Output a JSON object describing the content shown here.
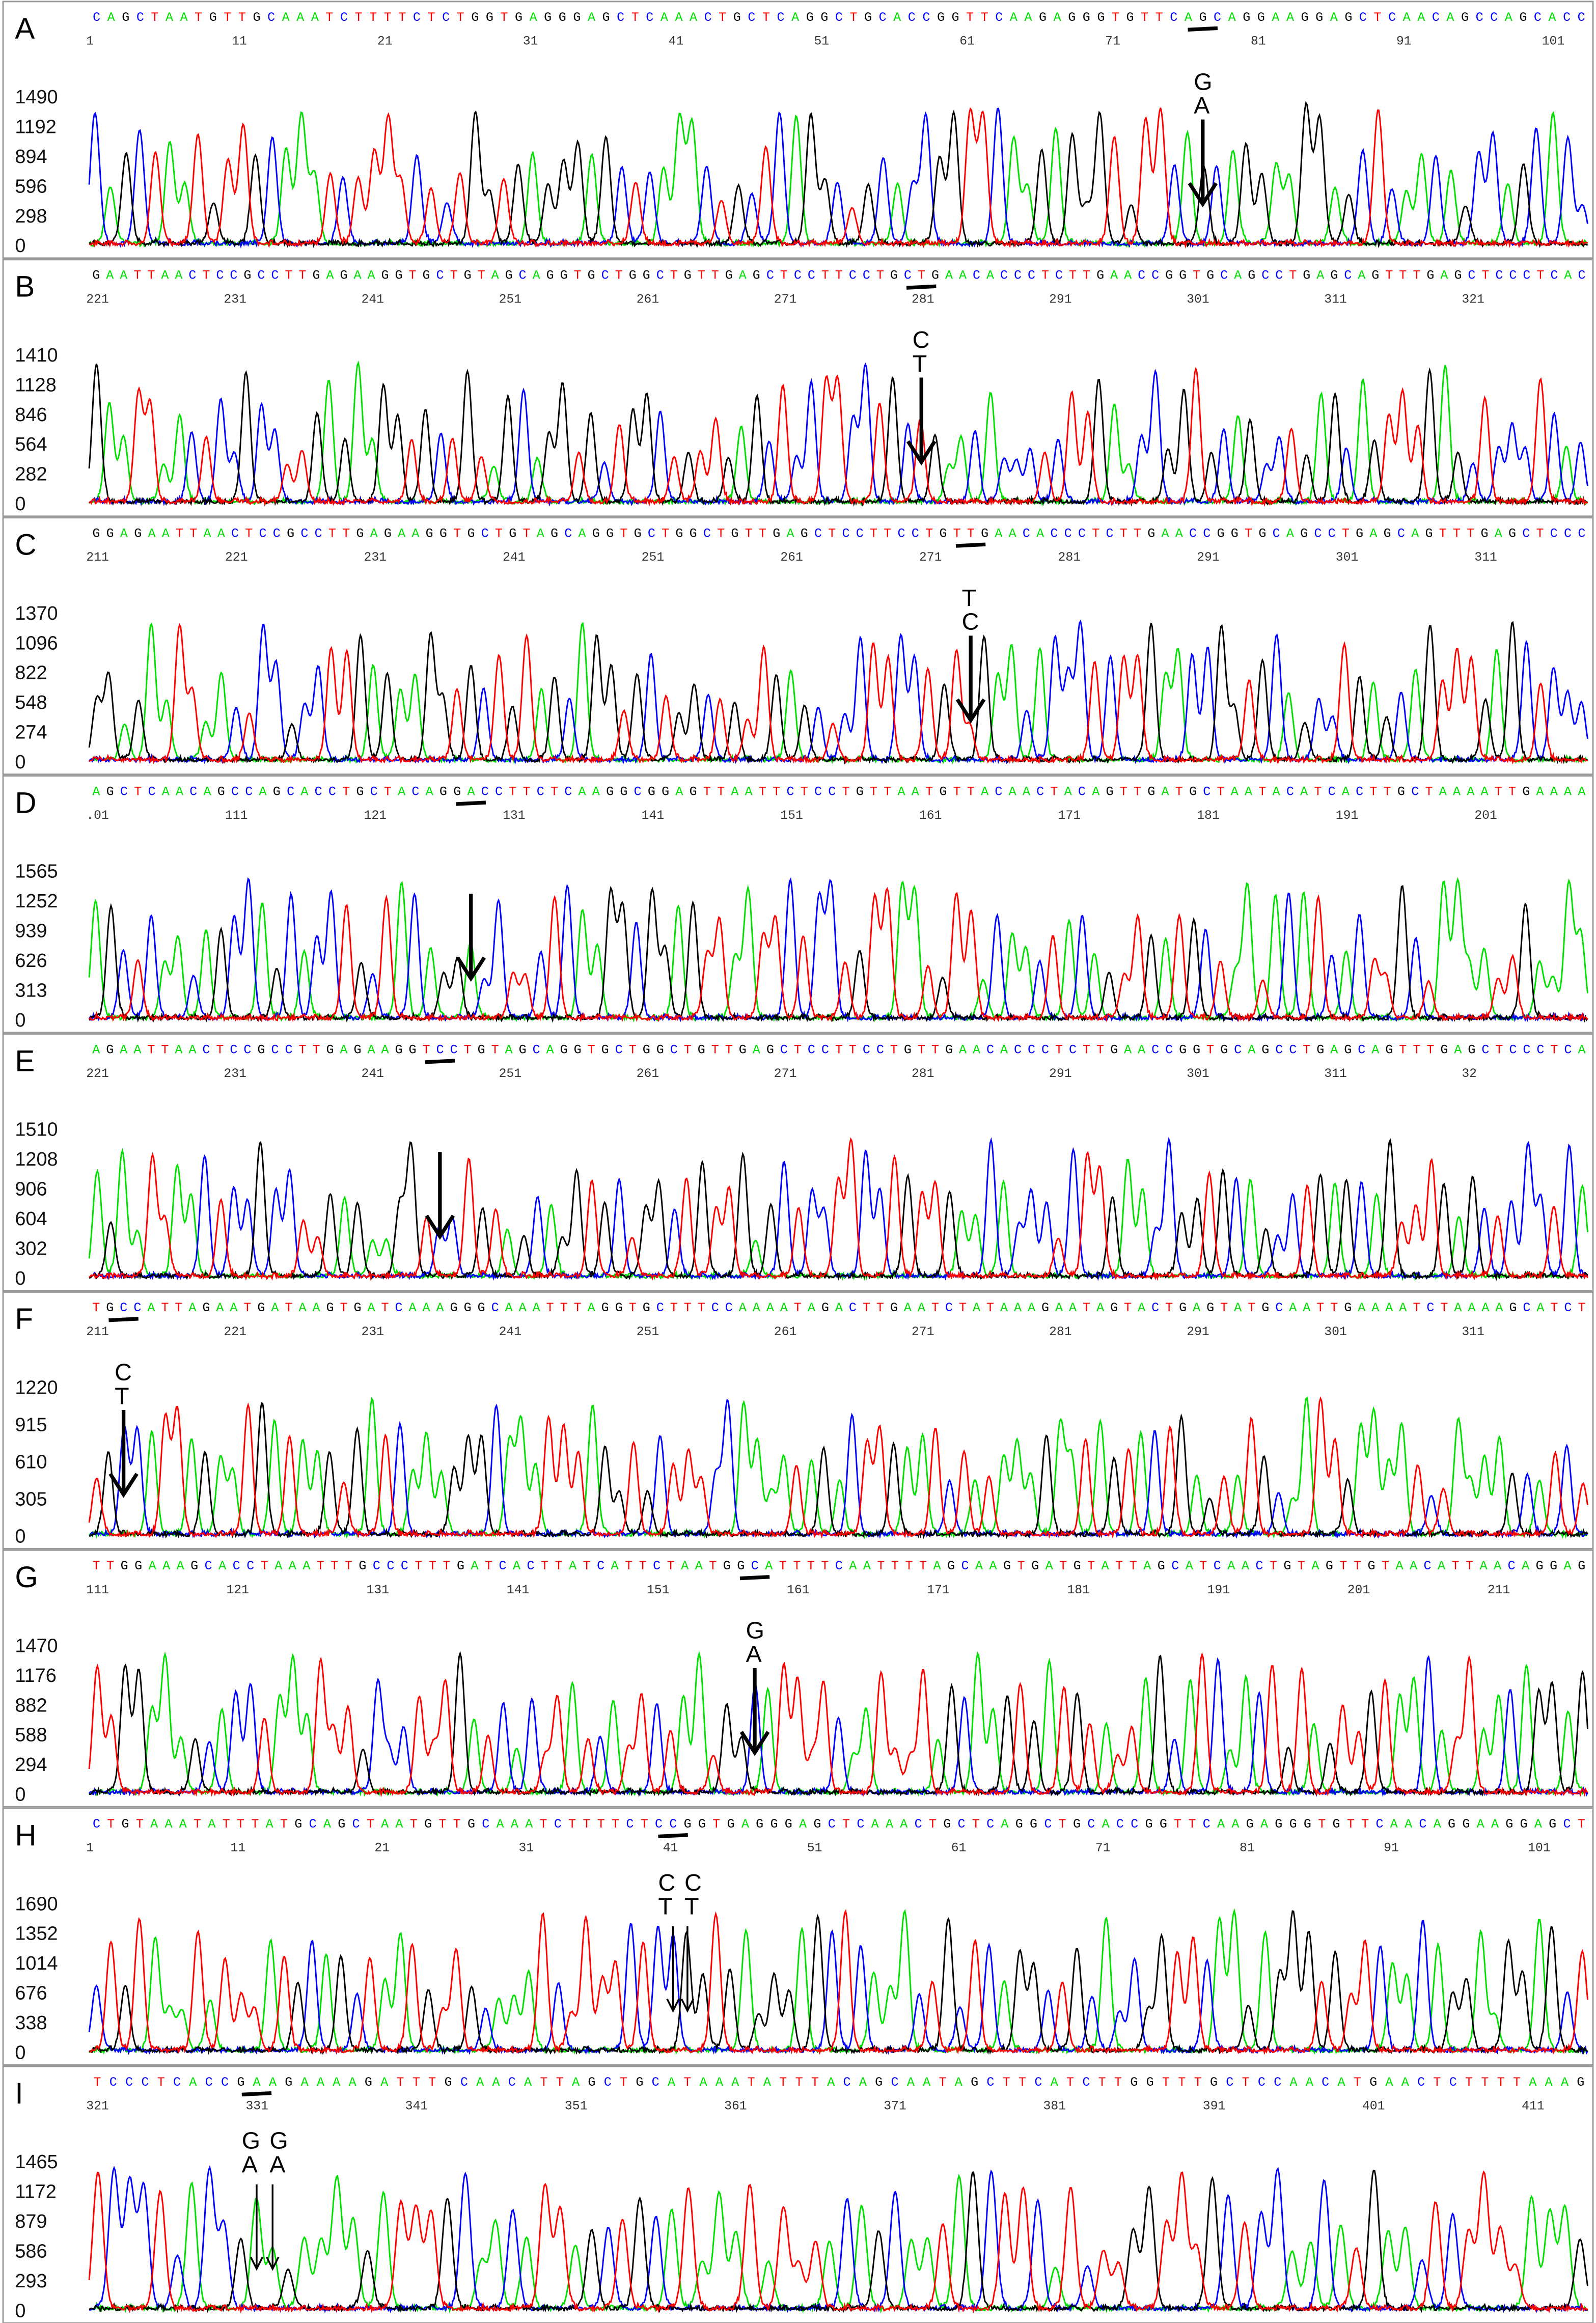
{
  "colors": {
    "A": "#00e000",
    "C": "#0000ff",
    "G": "#000000",
    "T": "#ff0000",
    "frame": "#999999"
  },
  "panels": [
    {
      "label": "A",
      "sequence": "CAGCTAATGTTGCAAATCTTTTCTCTGGTGAGGGAGCTCAAACTGCTCAGGCTGCACCGGTTCAAGAGGGTGTTCAGCAGGAAGGAGCTCAACAGCCAGCACC",
      "ticks": [
        "1",
        "11",
        "21",
        "31",
        "41",
        "51",
        "61",
        "71",
        "81",
        "91",
        "101"
      ],
      "yticks": [
        "0",
        "298",
        "596",
        "894",
        "1192",
        "1490"
      ],
      "mark_base": 76,
      "annotation": [
        [
          "G",
          "A"
        ]
      ],
      "arrow_bases": [
        76
      ]
    },
    {
      "label": "B",
      "sequence": "GAATTAACTCCGCCTTGAGAAGGTGCTGTAGCAGGTGCTGGCTGTTGAGCTCCTTCCTGCTGAACACCCTCTTGAACCGGTGCAGCCTGAGCAGTTTGAGCTCCCTCAC",
      "ticks": [
        "221",
        "231",
        "241",
        "251",
        "261",
        "271",
        "281",
        "291",
        "301",
        "311",
        "321"
      ],
      "yticks": [
        "0",
        "282",
        "564",
        "846",
        "1128",
        "1410"
      ],
      "mark_base": 60,
      "annotation": [
        [
          "C",
          "T"
        ]
      ],
      "arrow_bases": [
        60
      ]
    },
    {
      "label": "C",
      "sequence": "GGAGAATTAACTCCGCCTTGAGAAGGTGCTGTAGCAGGTGCTGGCTGTTGAGCTCCTTCCTGTTGAACACCCTCTTGAACCGGTGCAGCCTGAGCAGTTTGAGCTCCC",
      "ticks": [
        "211",
        "221",
        "231",
        "241",
        "251",
        "261",
        "271",
        "281",
        "291",
        "301",
        "311"
      ],
      "yticks": [
        "0",
        "274",
        "548",
        "822",
        "1096",
        "1370"
      ],
      "mark_base": 63,
      "annotation": [
        [
          "T",
          "C"
        ]
      ],
      "arrow_bases": [
        63
      ]
    },
    {
      "label": "D",
      "sequence": "AGCTCAACAGCCAGCACCTGCTACAGGACCTTCTCAAGGCGGAGTTAATTCTCCTGTTAATGTTACAACTACAGTTGATGCTAATACATCACTTGCTAAAATTGAAAA",
      "ticks": [
        ".01",
        "111",
        "121",
        "131",
        "141",
        "151",
        "161",
        "171",
        "181",
        "191",
        "201"
      ],
      "yticks": [
        "0",
        "313",
        "626",
        "939",
        "1252",
        "1565"
      ],
      "mark_base": 27,
      "annotation": [],
      "arrow_bases": [
        27
      ]
    },
    {
      "label": "E",
      "sequence": "AGAATTAACTCCGCCTTGAGAAGGTCCTGTAGCAGGTGCTGGCTGTTGAGCTCCTTCCTGTTGAACACCCTCTTGAACCGGTGCAGCCTGAGCAGTTTGAGCTCCCTCA",
      "ticks": [
        "221",
        "231",
        "241",
        "251",
        "261",
        "271",
        "281",
        "291",
        "301",
        "311",
        "32"
      ],
      "yticks": [
        "0",
        "302",
        "604",
        "906",
        "1208",
        "1510"
      ],
      "mark_base": 25,
      "annotation": [],
      "arrow_bases": [
        25
      ]
    },
    {
      "label": "F",
      "sequence": "TGCCATTAGAATGATAAGTGATCAAAGGGCAAATTTAGGTGCTTTCCAAAATAGACTTGAATCTATAAAGAATAGTACTGAGTATGCAATTGAAAATCTAAAAGCATCT",
      "ticks": [
        "211",
        "221",
        "231",
        "241",
        "251",
        "261",
        "271",
        "281",
        "291",
        "301",
        "311"
      ],
      "yticks": [
        "0",
        "305",
        "610",
        "915",
        "1220"
      ],
      "mark_base": 2,
      "annotation": [
        [
          "C",
          "T"
        ]
      ],
      "arrow_bases": [
        2
      ]
    },
    {
      "label": "G",
      "sequence": "TTGGAAAGCACCTAAATTTGCCCTTTGATCACTTATCATTCTAATGGCATTTTCAATTTTAGCAAGTGATGTATTAGCATCAACTGTAGTTGTAACATTAACAGGAG",
      "ticks": [
        "111",
        "121",
        "131",
        "141",
        "151",
        "161",
        "171",
        "181",
        "191",
        "201",
        "211"
      ],
      "yticks": [
        "0",
        "294",
        "588",
        "882",
        "1176",
        "1470"
      ],
      "mark_base": 47,
      "annotation": [
        [
          "G",
          "A"
        ]
      ],
      "arrow_bases": [
        47
      ]
    },
    {
      "label": "H",
      "sequence": "CTGTAAATATTTATGCAGCTAATGTTGCAAATCTTTTCTCCGGTGAGGGAGCTCAAACTGCTCAGGCTGCACCGGTTCAAGAGGGTGTTCAACAGGAAGGAGCT",
      "ticks": [
        "1",
        "11",
        "21",
        "31",
        "41",
        "51",
        "61",
        "71",
        "81",
        "91",
        "101"
      ],
      "yticks": [
        "0",
        "338",
        "676",
        "1014",
        "1352",
        "1690"
      ],
      "mark_base": 40,
      "annotation": [
        [
          "C",
          "T"
        ],
        [
          "C",
          "T"
        ]
      ],
      "arrow_bases": [
        40,
        41
      ]
    },
    {
      "label": "I",
      "sequence": "TCCCTCACCGAAGAAAAGATTTGCAACATTAGCTGCATAAATATTTACAGCAATAGCTTCATCTTGGTTTGCTCCAACATGAACTCTTTTAAAG",
      "ticks": [
        "321",
        "331",
        "341",
        "351",
        "361",
        "371",
        "381",
        "391",
        "401",
        "411"
      ],
      "yticks": [
        "0",
        "293",
        "586",
        "879",
        "1172",
        "1465"
      ],
      "mark_base": 10,
      "annotation": [
        [
          "G",
          "A"
        ],
        [
          "G",
          "A"
        ]
      ],
      "arrow_bases": [
        10,
        11
      ]
    }
  ]
}
